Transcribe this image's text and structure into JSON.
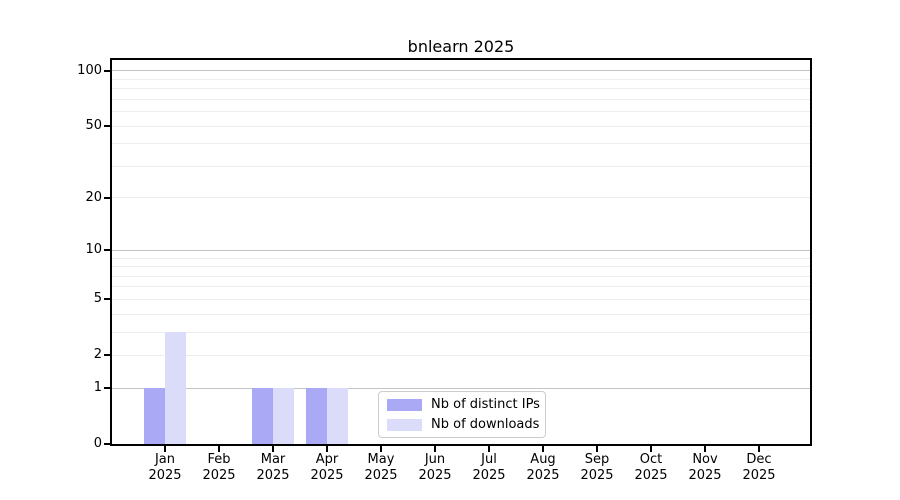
{
  "chart_data": {
    "type": "bar",
    "title": "bnlearn 2025",
    "categories": [
      "Jan",
      "Feb",
      "Mar",
      "Apr",
      "May",
      "Jun",
      "Jul",
      "Aug",
      "Sep",
      "Oct",
      "Nov",
      "Dec"
    ],
    "year": "2025",
    "series": [
      {
        "name": "Nb of distinct IPs",
        "color": "#a9a9f5",
        "values": [
          1,
          0,
          1,
          1,
          0,
          0,
          0,
          0,
          0,
          0,
          0,
          0
        ]
      },
      {
        "name": "Nb of downloads",
        "color": "#dbdbfa",
        "values": [
          3,
          0,
          1,
          1,
          0,
          0,
          0,
          0,
          0,
          0,
          0,
          0
        ]
      }
    ],
    "yscale": "log1p",
    "ylim": [
      0,
      115
    ],
    "yticks": [
      0,
      1,
      2,
      5,
      10,
      20,
      50,
      100
    ],
    "minor_gridlines": [
      2,
      3,
      4,
      5,
      6,
      7,
      8,
      9,
      20,
      30,
      40,
      50,
      60,
      70,
      80,
      90
    ],
    "major_gridlines": [
      1,
      10,
      100
    ],
    "grid": "on",
    "legend": {
      "entries": [
        "Nb of distinct IPs",
        "Nb of downloads"
      ],
      "position": "lower center"
    },
    "colors": {
      "minor_grid": "#ededed",
      "major_grid": "#c4c4c4",
      "spine": "#000000",
      "background": "#ffffff",
      "legend_border": "#cccccc",
      "text": "#000000"
    }
  }
}
